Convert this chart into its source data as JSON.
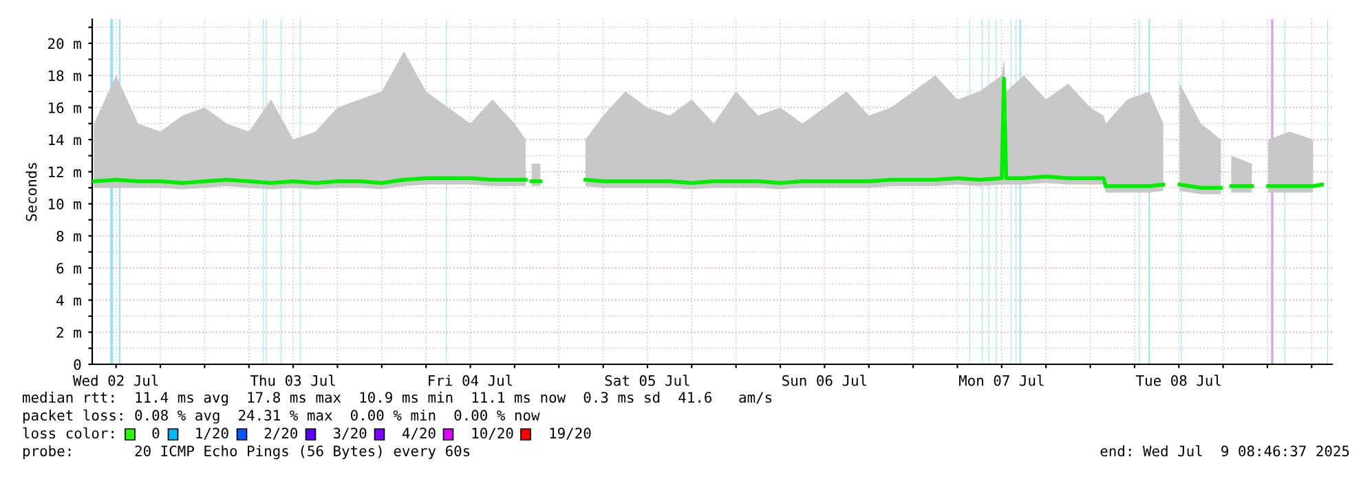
{
  "chart_data": {
    "type": "line",
    "ylabel": "Seconds",
    "x": [
      "2025-07-02T09:00",
      "2025-07-02T12:00",
      "2025-07-02T15:00",
      "2025-07-02T18:00",
      "2025-07-02T21:00",
      "2025-07-03T00:00",
      "2025-07-03T03:00",
      "2025-07-03T06:00",
      "2025-07-03T09:00",
      "2025-07-03T12:00",
      "2025-07-03T15:00",
      "2025-07-03T18:00",
      "2025-07-03T21:00",
      "2025-07-04T00:00",
      "2025-07-04T03:00",
      "2025-07-04T06:00",
      "2025-07-04T09:00",
      "2025-07-04T12:00",
      "2025-07-04T15:00",
      "2025-07-04T18:00",
      "2025-07-04T19:30",
      "2025-07-04T20:12",
      "2025-07-04T20:18",
      "2025-07-04T21:30",
      "2025-07-04T22:00",
      "2025-07-05T03:36",
      "2025-07-05T06:00",
      "2025-07-05T09:00",
      "2025-07-05T12:00",
      "2025-07-05T15:00",
      "2025-07-05T18:00",
      "2025-07-05T21:00",
      "2025-07-06T00:00",
      "2025-07-06T03:00",
      "2025-07-06T06:00",
      "2025-07-06T09:00",
      "2025-07-06T12:00",
      "2025-07-06T15:00",
      "2025-07-06T18:00",
      "2025-07-06T21:00",
      "2025-07-07T00:00",
      "2025-07-07T03:00",
      "2025-07-07T06:00",
      "2025-07-07T09:00",
      "2025-07-07T12:00",
      "2025-07-07T12:18",
      "2025-07-07T12:36",
      "2025-07-07T15:00",
      "2025-07-07T18:00",
      "2025-07-07T21:00",
      "2025-07-08T00:00",
      "2025-07-08T01:48",
      "2025-07-08T02:06",
      "2025-07-08T05:00",
      "2025-07-08T08:00",
      "2025-07-08T09:54",
      "2025-07-08T11:00",
      "2025-07-08T12:06",
      "2025-07-08T15:00",
      "2025-07-08T17:42",
      "2025-07-08T18:30",
      "2025-07-08T19:06",
      "2025-07-08T21:54",
      "2025-07-08T23:00",
      "2025-07-09T00:06",
      "2025-07-09T03:00",
      "2025-07-09T06:12",
      "2025-07-09T07:24"
    ],
    "series": [
      {
        "color": "#00ee00",
        "values": [
          11.4,
          11.5,
          11.4,
          11.4,
          11.3,
          11.4,
          11.5,
          11.4,
          11.3,
          11.4,
          11.3,
          11.4,
          11.4,
          11.3,
          11.5,
          11.6,
          11.6,
          11.6,
          11.5,
          11.5,
          11.5,
          null,
          11.4,
          11.4,
          null,
          11.5,
          11.4,
          11.4,
          11.4,
          11.4,
          11.3,
          11.4,
          11.4,
          11.4,
          11.3,
          11.4,
          11.4,
          11.4,
          11.4,
          11.5,
          11.5,
          11.5,
          11.6,
          11.5,
          11.6,
          17.8,
          11.6,
          11.6,
          11.7,
          11.6,
          11.6,
          11.6,
          11.1,
          11.1,
          11.1,
          11.2,
          null,
          11.2,
          11.0,
          11.0,
          null,
          11.1,
          11.1,
          null,
          11.1,
          11.1,
          11.1,
          11.2
        ],
        "lower": [
          11.0,
          11.0,
          11.0,
          11.0,
          10.9,
          11.0,
          11.1,
          11.0,
          10.9,
          11.0,
          10.9,
          11.0,
          11.0,
          10.9,
          11.1,
          11.2,
          11.2,
          11.2,
          11.1,
          11.1,
          11.1,
          null,
          11.1,
          11.1,
          null,
          11.1,
          11.0,
          11.0,
          11.0,
          11.0,
          10.9,
          11.0,
          11.0,
          11.0,
          10.9,
          11.0,
          11.0,
          11.0,
          11.0,
          11.1,
          11.1,
          11.1,
          11.2,
          11.1,
          11.2,
          11.2,
          11.2,
          11.2,
          11.3,
          11.2,
          11.2,
          11.2,
          10.7,
          10.7,
          10.7,
          10.8,
          null,
          10.8,
          10.6,
          10.6,
          null,
          10.7,
          10.7,
          null,
          10.7,
          10.7,
          10.7,
          null
        ],
        "upper": [
          15,
          18,
          15,
          14.5,
          15.5,
          16,
          15,
          14.5,
          16.5,
          14,
          14.5,
          16,
          16.5,
          17,
          19.5,
          17,
          16,
          15,
          16.5,
          15,
          14,
          null,
          12.5,
          12.5,
          null,
          14,
          15.5,
          17,
          16,
          15.5,
          16.5,
          15,
          17,
          15.5,
          16,
          15,
          16,
          17,
          15.5,
          16,
          17,
          18,
          16.5,
          17,
          18,
          19,
          17,
          18,
          16.5,
          17.5,
          16,
          15.5,
          15,
          16.5,
          17,
          15,
          null,
          17.5,
          15,
          14,
          null,
          13,
          12.5,
          null,
          14,
          14.5,
          14,
          null
        ]
      }
    ],
    "xlim": [
      "2025-07-02T08:46",
      "2025-07-09T08:46"
    ],
    "xticks": [
      {
        "value": "2025-07-02T12:00",
        "label": "Wed 02 Jul"
      },
      {
        "value": "2025-07-02T18:00",
        "label": null
      },
      {
        "value": "2025-07-03T00:00",
        "label": null
      },
      {
        "value": "2025-07-03T06:00",
        "label": null
      },
      {
        "value": "2025-07-03T12:00",
        "label": "Thu 03 Jul"
      },
      {
        "value": "2025-07-03T18:00",
        "label": null
      },
      {
        "value": "2025-07-04T00:00",
        "label": null
      },
      {
        "value": "2025-07-04T06:00",
        "label": null
      },
      {
        "value": "2025-07-04T12:00",
        "label": "Fri 04 Jul"
      },
      {
        "value": "2025-07-04T18:00",
        "label": null
      },
      {
        "value": "2025-07-05T00:00",
        "label": null
      },
      {
        "value": "2025-07-05T06:00",
        "label": null
      },
      {
        "value": "2025-07-05T12:00",
        "label": "Sat 05 Jul"
      },
      {
        "value": "2025-07-05T18:00",
        "label": null
      },
      {
        "value": "2025-07-06T00:00",
        "label": null
      },
      {
        "value": "2025-07-06T06:00",
        "label": null
      },
      {
        "value": "2025-07-06T12:00",
        "label": "Sun 06 Jul"
      },
      {
        "value": "2025-07-06T18:00",
        "label": null
      },
      {
        "value": "2025-07-07T00:00",
        "label": null
      },
      {
        "value": "2025-07-07T06:00",
        "label": null
      },
      {
        "value": "2025-07-07T12:00",
        "label": "Mon 07 Jul"
      },
      {
        "value": "2025-07-07T18:00",
        "label": null
      },
      {
        "value": "2025-07-08T00:00",
        "label": null
      },
      {
        "value": "2025-07-08T06:00",
        "label": null
      },
      {
        "value": "2025-07-08T12:00",
        "label": "Tue 08 Jul"
      },
      {
        "value": "2025-07-08T18:00",
        "label": null
      },
      {
        "value": "2025-07-09T00:00",
        "label": null
      },
      {
        "value": "2025-07-09T06:00",
        "label": null
      }
    ],
    "ylim": [
      0,
      21.5
    ],
    "yticks": [
      0,
      {
        "value": 1,
        "label": null
      },
      {
        "value": 2,
        "label": "2 m"
      },
      {
        "value": 3,
        "label": null
      },
      {
        "value": 4,
        "label": "4 m"
      },
      {
        "value": 5,
        "label": null
      },
      {
        "value": 6,
        "label": "6 m"
      },
      {
        "value": 7,
        "label": null
      },
      {
        "value": 8,
        "label": "8 m"
      },
      {
        "value": 9,
        "label": null
      },
      {
        "value": 10,
        "label": "10 m"
      },
      {
        "value": 11,
        "label": null
      },
      {
        "value": 12,
        "label": "12 m"
      },
      {
        "value": 13,
        "label": null
      },
      {
        "value": 14,
        "label": "14 m"
      },
      {
        "value": 15,
        "label": null
      },
      {
        "value": 16,
        "label": "16 m"
      },
      {
        "value": 17,
        "label": null
      },
      {
        "value": 18,
        "label": "18 m"
      },
      {
        "value": 19,
        "label": null
      },
      {
        "value": 20,
        "label": "20 m"
      },
      {
        "value": 21,
        "label": null
      }
    ],
    "grid": true,
    "bands": [
      {
        "axis": "x",
        "from": "2025-07-02T11:12",
        "to": "2025-07-02T11:36",
        "color": "#9be2f8"
      },
      {
        "axis": "x",
        "from": "2025-07-02T12:24",
        "to": "2025-07-02T12:36",
        "color": "#9be2f8"
      },
      {
        "axis": "x",
        "from": "2025-07-03T07:54",
        "to": "2025-07-03T08:00",
        "color": "#9be2f8"
      },
      {
        "axis": "x",
        "from": "2025-07-03T08:18",
        "to": "2025-07-03T08:24",
        "color": "#9be2f8"
      },
      {
        "axis": "x",
        "from": "2025-07-03T10:18",
        "to": "2025-07-03T10:24",
        "color": "#9be2f8"
      },
      {
        "axis": "x",
        "from": "2025-07-03T12:54",
        "to": "2025-07-03T13:00",
        "color": "#9be2f8"
      },
      {
        "axis": "x",
        "from": "2025-07-04T08:42",
        "to": "2025-07-04T08:48",
        "color": "#9be2f8"
      },
      {
        "axis": "x",
        "from": "2025-07-07T07:36",
        "to": "2025-07-07T07:42",
        "color": "#9be2f8"
      },
      {
        "axis": "x",
        "from": "2025-07-07T09:18",
        "to": "2025-07-07T09:24",
        "color": "#9be2f8"
      },
      {
        "axis": "x",
        "from": "2025-07-07T10:12",
        "to": "2025-07-07T10:18",
        "color": "#9be2f8"
      },
      {
        "axis": "x",
        "from": "2025-07-07T11:12",
        "to": "2025-07-07T11:18",
        "color": "#9be2f8"
      },
      {
        "axis": "x",
        "from": "2025-07-07T13:12",
        "to": "2025-07-07T13:18",
        "color": "#9be2f8"
      },
      {
        "axis": "x",
        "from": "2025-07-07T13:54",
        "to": "2025-07-07T14:00",
        "color": "#9be2f8"
      },
      {
        "axis": "x",
        "from": "2025-07-07T14:24",
        "to": "2025-07-07T14:36",
        "color": "#9be2f8"
      },
      {
        "axis": "x",
        "from": "2025-07-08T06:36",
        "to": "2025-07-08T06:42",
        "color": "#9be2f8"
      },
      {
        "axis": "x",
        "from": "2025-07-08T07:54",
        "to": "2025-07-08T08:06",
        "color": "#9be2f8"
      },
      {
        "axis": "x",
        "from": "2025-07-08T12:18",
        "to": "2025-07-08T12:24",
        "color": "#9be2f8"
      },
      {
        "axis": "x",
        "from": "2025-07-09T00:30",
        "to": "2025-07-09T00:48",
        "color": "#d59cf5"
      },
      {
        "axis": "x",
        "from": "2025-07-09T02:18",
        "to": "2025-07-09T02:24",
        "color": "#9be2f8"
      },
      {
        "axis": "x",
        "from": "2025-07-09T08:06",
        "to": "2025-07-09T08:12",
        "color": "#9be2f8"
      }
    ],
    "annotations": [
      "median rtt:  11.4 ms avg  17.8 ms max  10.9 ms min  11.1 ms now  0.3 ms sd  41.6   am/s",
      "packet loss: 0.08 % avg  24.31 % max  0.00 % min  0.00 % now",
      "loss color:    0    1/20    2/20    3/20    4/20    10/20    19/20",
      "probe:       20 ICMP Echo Pings (56 Bytes) every 60s",
      "end: Wed Jul  9 08:46:37 2025"
    ]
  }
}
